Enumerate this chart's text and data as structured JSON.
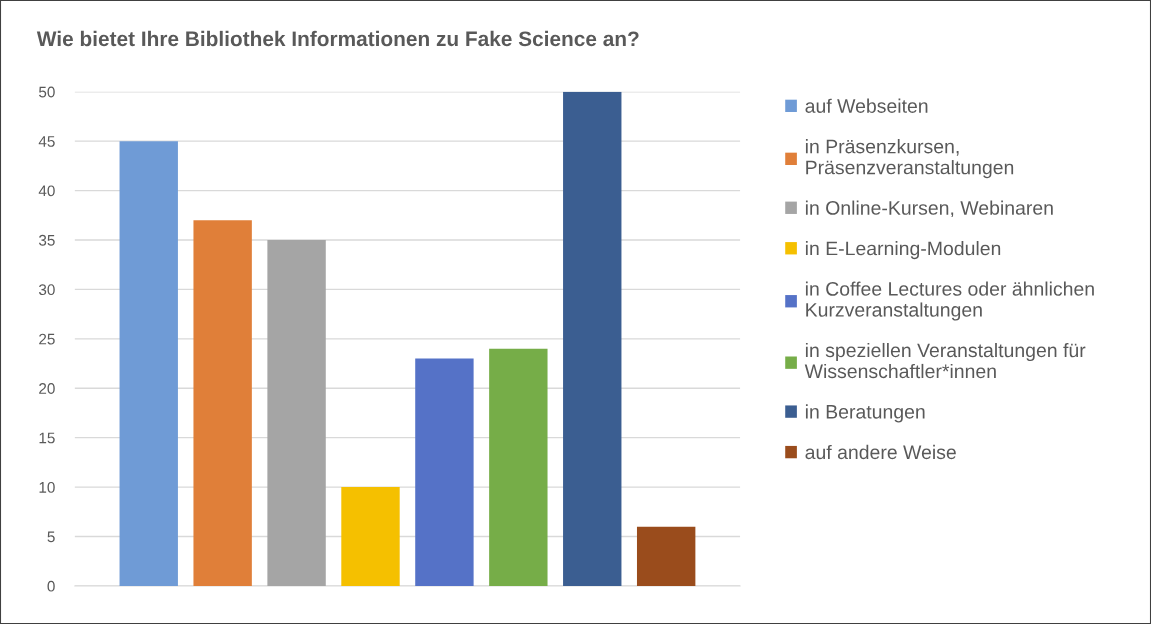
{
  "chart_data": {
    "type": "bar",
    "title": "Wie bietet Ihre Bibliothek Informationen zu Fake Science an?",
    "categories": [
      null
    ],
    "series": [
      {
        "name": "auf Webseiten",
        "color": "#6f9bd6",
        "values": [
          45
        ]
      },
      {
        "name": "in Präsenzkursen,\nPräsenzveranstaltungen",
        "color": "#e07f39",
        "values": [
          37
        ]
      },
      {
        "name": "in Online-Kursen, Webinaren",
        "color": "#a5a5a5",
        "values": [
          35
        ]
      },
      {
        "name": "in E-Learning-Modulen",
        "color": "#f5c000",
        "values": [
          10
        ]
      },
      {
        "name": "in Coffee Lectures oder ähnlichen\nKurzveranstaltungen",
        "color": "#5572c7",
        "values": [
          23
        ]
      },
      {
        "name": "in speziellen Veranstaltungen für\nWissenschaftler*innen",
        "color": "#76ad48",
        "values": [
          24
        ]
      },
      {
        "name": "in Beratungen",
        "color": "#3b5e91",
        "values": [
          50
        ]
      },
      {
        "name": "auf andere Weise",
        "color": "#9a4c1c",
        "values": [
          6
        ]
      }
    ],
    "ylim": [
      0,
      50
    ],
    "yticks": [
      0,
      5,
      10,
      15,
      20,
      25,
      30,
      35,
      40,
      45,
      50
    ],
    "grid": "y",
    "legend": "right",
    "tick_labels": "y"
  }
}
